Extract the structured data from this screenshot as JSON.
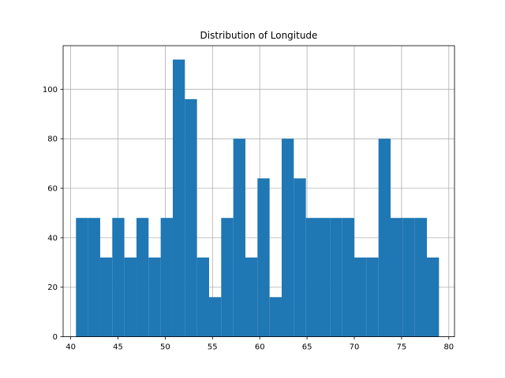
{
  "chart_data": {
    "type": "bar",
    "subtype": "histogram",
    "title": "Distribution of Longitude",
    "xlabel": "",
    "ylabel": "",
    "grid": true,
    "xlim": [
      39.2,
      80.6
    ],
    "ylim": [
      0,
      117.6
    ],
    "x_ticks": [
      40,
      45,
      50,
      55,
      60,
      65,
      70,
      75,
      80
    ],
    "y_ticks": [
      0,
      20,
      40,
      60,
      80,
      100
    ],
    "bar_color": "#1f77b4",
    "bins": [
      {
        "x0": 40.56,
        "x1": 41.84,
        "count": 48
      },
      {
        "x0": 41.84,
        "x1": 43.12,
        "count": 48
      },
      {
        "x0": 43.12,
        "x1": 44.4,
        "count": 32
      },
      {
        "x0": 44.4,
        "x1": 45.68,
        "count": 48
      },
      {
        "x0": 45.68,
        "x1": 46.96,
        "count": 32
      },
      {
        "x0": 46.96,
        "x1": 48.24,
        "count": 48
      },
      {
        "x0": 48.24,
        "x1": 49.52,
        "count": 32
      },
      {
        "x0": 49.52,
        "x1": 50.8,
        "count": 48
      },
      {
        "x0": 50.8,
        "x1": 52.08,
        "count": 112
      },
      {
        "x0": 52.08,
        "x1": 53.36,
        "count": 96
      },
      {
        "x0": 53.36,
        "x1": 54.64,
        "count": 32
      },
      {
        "x0": 54.64,
        "x1": 55.92,
        "count": 16
      },
      {
        "x0": 55.92,
        "x1": 57.2,
        "count": 48
      },
      {
        "x0": 57.2,
        "x1": 58.48,
        "count": 80
      },
      {
        "x0": 58.48,
        "x1": 59.76,
        "count": 32
      },
      {
        "x0": 59.76,
        "x1": 61.04,
        "count": 64
      },
      {
        "x0": 61.04,
        "x1": 62.32,
        "count": 16
      },
      {
        "x0": 62.32,
        "x1": 63.6,
        "count": 80
      },
      {
        "x0": 63.6,
        "x1": 64.88,
        "count": 64
      },
      {
        "x0": 64.88,
        "x1": 66.16,
        "count": 48
      },
      {
        "x0": 66.16,
        "x1": 67.44,
        "count": 48
      },
      {
        "x0": 67.44,
        "x1": 68.72,
        "count": 48
      },
      {
        "x0": 68.72,
        "x1": 70.0,
        "count": 48
      },
      {
        "x0": 70.0,
        "x1": 71.28,
        "count": 32
      },
      {
        "x0": 71.28,
        "x1": 72.56,
        "count": 32
      },
      {
        "x0": 72.56,
        "x1": 73.84,
        "count": 80
      },
      {
        "x0": 73.84,
        "x1": 75.12,
        "count": 48
      },
      {
        "x0": 75.12,
        "x1": 76.4,
        "count": 48
      },
      {
        "x0": 76.4,
        "x1": 77.68,
        "count": 48
      },
      {
        "x0": 77.68,
        "x1": 78.96,
        "count": 32
      }
    ]
  }
}
